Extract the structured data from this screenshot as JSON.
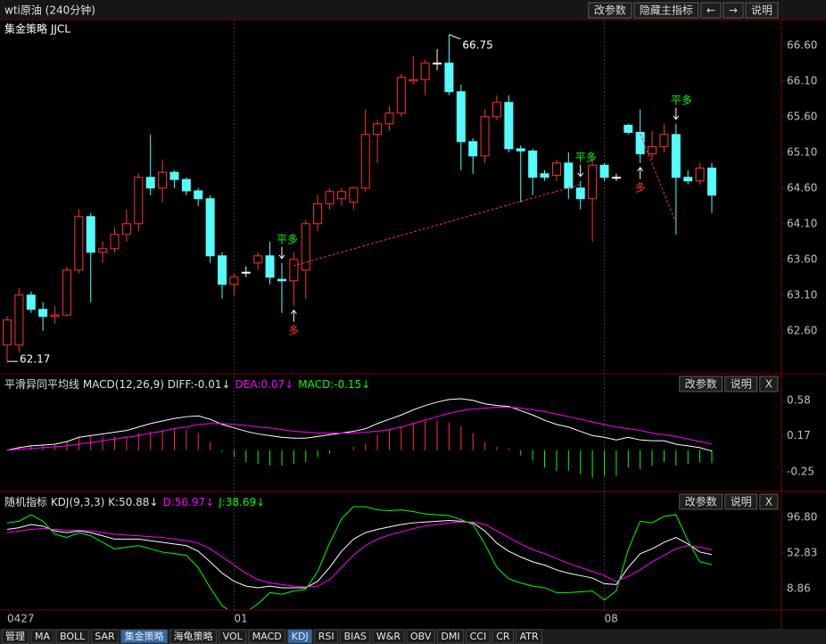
{
  "title": "wti原油 (240分钟)",
  "toolbar": [
    "改参数",
    "隐藏主指标",
    "←",
    "→",
    "说明"
  ],
  "main": {
    "label": "集金策略 JJCL",
    "ylim": [
      62.01,
      66.96
    ],
    "yticks": [
      {
        "value": 66.6,
        "label": "66.60"
      },
      {
        "value": 66.1,
        "label": "66.10"
      },
      {
        "value": 65.6,
        "label": "65.60"
      },
      {
        "value": 65.1,
        "label": "65.10"
      },
      {
        "value": 64.6,
        "label": "64.60"
      },
      {
        "value": 64.1,
        "label": "64.10"
      },
      {
        "value": 63.6,
        "label": "63.60"
      },
      {
        "value": 63.1,
        "label": "63.10"
      },
      {
        "value": 62.6,
        "label": "62.60"
      }
    ],
    "up_color": "#ff3232",
    "down_color": "#54fcfc",
    "doji_color": "#ffffff",
    "candles": [
      {
        "o": 62.4,
        "h": 62.8,
        "l": 62.17,
        "c": 62.75
      },
      {
        "o": 62.4,
        "h": 63.2,
        "l": 62.3,
        "c": 63.1
      },
      {
        "o": 63.1,
        "h": 63.15,
        "l": 62.85,
        "c": 62.9
      },
      {
        "o": 62.9,
        "h": 63.0,
        "l": 62.6,
        "c": 62.8
      },
      {
        "o": 62.8,
        "h": 62.95,
        "l": 62.7,
        "c": 62.82
      },
      {
        "o": 62.82,
        "h": 63.5,
        "l": 62.8,
        "c": 63.45
      },
      {
        "o": 63.45,
        "h": 64.3,
        "l": 63.4,
        "c": 64.2
      },
      {
        "o": 64.2,
        "h": 64.25,
        "l": 63.0,
        "c": 63.7
      },
      {
        "o": 63.7,
        "h": 63.85,
        "l": 63.55,
        "c": 63.75
      },
      {
        "o": 63.75,
        "h": 64.05,
        "l": 63.7,
        "c": 63.95
      },
      {
        "o": 63.95,
        "h": 64.3,
        "l": 63.85,
        "c": 64.1
      },
      {
        "o": 64.1,
        "h": 64.8,
        "l": 64.0,
        "c": 64.75
      },
      {
        "o": 64.75,
        "h": 65.35,
        "l": 64.5,
        "c": 64.6
      },
      {
        "o": 64.6,
        "h": 65.0,
        "l": 64.4,
        "c": 64.82
      },
      {
        "o": 64.82,
        "h": 64.85,
        "l": 64.6,
        "c": 64.72
      },
      {
        "o": 64.72,
        "h": 64.75,
        "l": 64.5,
        "c": 64.56
      },
      {
        "o": 64.56,
        "h": 64.6,
        "l": 64.35,
        "c": 64.45
      },
      {
        "o": 64.45,
        "h": 64.5,
        "l": 63.55,
        "c": 63.65
      },
      {
        "o": 63.65,
        "h": 63.7,
        "l": 63.05,
        "c": 63.25
      },
      {
        "o": 63.25,
        "h": 63.4,
        "l": 63.1,
        "c": 63.35
      },
      {
        "o": 63.42,
        "h": 63.5,
        "l": 63.35,
        "c": 63.42
      },
      {
        "o": 63.55,
        "h": 63.7,
        "l": 63.45,
        "c": 63.65
      },
      {
        "o": 63.65,
        "h": 63.85,
        "l": 63.25,
        "c": 63.35
      },
      {
        "o": 63.32,
        "h": 63.55,
        "l": 62.85,
        "c": 63.3
      },
      {
        "o": 63.3,
        "h": 63.7,
        "l": 62.95,
        "c": 63.6
      },
      {
        "o": 63.45,
        "h": 64.15,
        "l": 63.05,
        "c": 64.1
      },
      {
        "o": 64.1,
        "h": 64.5,
        "l": 64.0,
        "c": 64.38
      },
      {
        "o": 64.38,
        "h": 64.6,
        "l": 64.3,
        "c": 64.55
      },
      {
        "o": 64.45,
        "h": 64.6,
        "l": 64.35,
        "c": 64.55
      },
      {
        "o": 64.4,
        "h": 64.62,
        "l": 64.3,
        "c": 64.6
      },
      {
        "o": 64.6,
        "h": 65.7,
        "l": 64.55,
        "c": 65.35
      },
      {
        "o": 65.35,
        "h": 65.55,
        "l": 64.95,
        "c": 65.5
      },
      {
        "o": 65.5,
        "h": 65.75,
        "l": 65.4,
        "c": 65.65
      },
      {
        "o": 65.65,
        "h": 66.2,
        "l": 65.6,
        "c": 66.15
      },
      {
        "o": 66.1,
        "h": 66.45,
        "l": 66.05,
        "c": 66.12
      },
      {
        "o": 66.12,
        "h": 66.4,
        "l": 65.9,
        "c": 66.35
      },
      {
        "o": 66.35,
        "h": 66.55,
        "l": 66.25,
        "c": 66.35
      },
      {
        "o": 66.35,
        "h": 66.75,
        "l": 65.9,
        "c": 65.95
      },
      {
        "o": 65.95,
        "h": 66.05,
        "l": 64.85,
        "c": 65.25
      },
      {
        "o": 65.25,
        "h": 65.3,
        "l": 64.8,
        "c": 65.05
      },
      {
        "o": 65.05,
        "h": 65.7,
        "l": 64.95,
        "c": 65.6
      },
      {
        "o": 65.6,
        "h": 65.9,
        "l": 65.55,
        "c": 65.8
      },
      {
        "o": 65.8,
        "h": 65.9,
        "l": 65.1,
        "c": 65.15
      },
      {
        "o": 65.15,
        "h": 65.2,
        "l": 64.4,
        "c": 65.12
      },
      {
        "o": 65.12,
        "h": 65.15,
        "l": 64.5,
        "c": 64.75
      },
      {
        "o": 64.8,
        "h": 64.85,
        "l": 64.7,
        "c": 64.75
      },
      {
        "o": 64.78,
        "h": 65.0,
        "l": 64.7,
        "c": 64.95
      },
      {
        "o": 64.95,
        "h": 65.1,
        "l": 64.45,
        "c": 64.6
      },
      {
        "o": 64.6,
        "h": 64.7,
        "l": 64.3,
        "c": 64.45
      },
      {
        "o": 64.45,
        "h": 65.0,
        "l": 63.85,
        "c": 64.92
      },
      {
        "o": 64.92,
        "h": 64.95,
        "l": 64.7,
        "c": 64.75
      },
      {
        "o": 64.75,
        "h": 64.8,
        "l": 64.7,
        "c": 64.75
      },
      {
        "o": 65.48,
        "h": 65.5,
        "l": 65.35,
        "c": 65.38
      },
      {
        "o": 65.38,
        "h": 65.7,
        "l": 64.95,
        "c": 65.08
      },
      {
        "o": 65.08,
        "h": 65.4,
        "l": 65.0,
        "c": 65.18
      },
      {
        "o": 65.18,
        "h": 65.5,
        "l": 65.1,
        "c": 65.35
      },
      {
        "o": 65.35,
        "h": 65.5,
        "l": 63.95,
        "c": 64.75
      },
      {
        "o": 64.75,
        "h": 64.85,
        "l": 64.65,
        "c": 64.7
      },
      {
        "o": 64.7,
        "h": 64.95,
        "l": 64.65,
        "c": 64.88
      },
      {
        "o": 64.88,
        "h": 64.95,
        "l": 64.25,
        "c": 64.5
      }
    ],
    "price_labels": [
      {
        "candle": 37,
        "field": "h"
      },
      {
        "candle": 0,
        "field": "l"
      }
    ],
    "signals": [
      {
        "text": "平多",
        "candle": 23,
        "side": "above",
        "color": "#00ff00"
      },
      {
        "text": "多",
        "candle": 24,
        "side": "below",
        "color": "#ff3232"
      },
      {
        "text": "平多",
        "candle": 48,
        "side": "above",
        "color": "#00ff00"
      },
      {
        "text": "多",
        "candle": 53,
        "side": "below",
        "color": "#ff3232"
      },
      {
        "text": "平多",
        "candle": 56,
        "side": "above",
        "color": "#00ff00"
      }
    ],
    "trend_lines": [
      {
        "from_candle": 24,
        "from_price": 63.51,
        "to_candle": 48,
        "to_price": 64.65,
        "color": "#ff3232"
      },
      {
        "from_candle": 53,
        "from_price": 65.36,
        "to_candle": 56,
        "to_price": 64.11,
        "color": "#ff3232"
      }
    ]
  },
  "macd": {
    "header": [
      {
        "text": "平滑异同平均线 MACD(12,26,9) DIFF:-0.01↓",
        "color": "#e0e0e0"
      },
      {
        "text": "DEA:0.07↓",
        "color": "#ff00ff"
      },
      {
        "text": "MACD:-0.15↓",
        "color": "#00ff00"
      }
    ],
    "buttons": [
      "改参数",
      "说明",
      "X"
    ],
    "ylim": [
      -0.47,
      0.88
    ],
    "yticks": [
      0.58,
      0.17,
      -0.25
    ],
    "series": [
      {
        "color": "#ffffff",
        "values": [
          0.0,
          0.03,
          0.05,
          0.06,
          0.07,
          0.1,
          0.15,
          0.17,
          0.19,
          0.21,
          0.23,
          0.27,
          0.31,
          0.34,
          0.37,
          0.39,
          0.4,
          0.36,
          0.3,
          0.26,
          0.22,
          0.19,
          0.17,
          0.15,
          0.14,
          0.14,
          0.16,
          0.18,
          0.2,
          0.22,
          0.25,
          0.31,
          0.36,
          0.41,
          0.47,
          0.52,
          0.56,
          0.59,
          0.6,
          0.58,
          0.54,
          0.52,
          0.51,
          0.46,
          0.41,
          0.35,
          0.3,
          0.27,
          0.22,
          0.17,
          0.15,
          0.12,
          0.15,
          0.12,
          0.11,
          0.11,
          0.07,
          0.05,
          0.03,
          -0.01
        ]
      },
      {
        "color": "#ff00ff",
        "values": [
          0.0,
          0.01,
          0.02,
          0.03,
          0.04,
          0.05,
          0.07,
          0.09,
          0.11,
          0.13,
          0.15,
          0.17,
          0.2,
          0.22,
          0.25,
          0.27,
          0.3,
          0.31,
          0.31,
          0.3,
          0.29,
          0.27,
          0.26,
          0.24,
          0.22,
          0.21,
          0.2,
          0.2,
          0.2,
          0.2,
          0.21,
          0.22,
          0.24,
          0.27,
          0.31,
          0.35,
          0.39,
          0.43,
          0.46,
          0.48,
          0.49,
          0.5,
          0.5,
          0.49,
          0.47,
          0.45,
          0.42,
          0.39,
          0.36,
          0.33,
          0.3,
          0.27,
          0.25,
          0.23,
          0.2,
          0.18,
          0.16,
          0.13,
          0.1,
          0.07
        ]
      }
    ],
    "bars": {
      "up_color": "#ff3232",
      "down_color": "#00ff00",
      "values": [
        0.0,
        0.04,
        0.06,
        0.06,
        0.06,
        0.1,
        0.16,
        0.16,
        0.16,
        0.16,
        0.16,
        0.2,
        0.22,
        0.24,
        0.24,
        0.24,
        0.2,
        0.1,
        -0.02,
        -0.08,
        -0.14,
        -0.16,
        -0.18,
        -0.18,
        -0.16,
        -0.14,
        -0.08,
        -0.04,
        0.0,
        0.04,
        0.08,
        0.18,
        0.24,
        0.28,
        0.32,
        0.34,
        0.34,
        0.32,
        0.28,
        0.2,
        0.1,
        0.04,
        0.02,
        -0.06,
        -0.12,
        -0.2,
        -0.24,
        -0.24,
        -0.28,
        -0.32,
        -0.3,
        -0.3,
        -0.2,
        -0.22,
        -0.18,
        -0.14,
        -0.18,
        -0.16,
        -0.14,
        -0.15
      ]
    }
  },
  "kdj": {
    "header": [
      {
        "text": "随机指标 KDJ(9,3,3) K:50.88↓",
        "color": "#e0e0e0"
      },
      {
        "text": "D:56.97↓",
        "color": "#ff00ff"
      },
      {
        "text": "J:38.69↓",
        "color": "#00ff00"
      }
    ],
    "buttons": [
      "改参数",
      "说明",
      "X"
    ],
    "ylim": [
      -16.42,
      127.58
    ],
    "yticks": [
      {
        "value": 96.8,
        "label": "96.80"
      },
      52.83,
      8.86
    ],
    "series": [
      {
        "color": "#ffffff",
        "values": [
          82,
          84,
          88,
          86,
          80,
          78,
          80,
          78,
          74,
          70,
          70,
          70,
          68,
          66,
          64,
          62,
          55,
          42,
          28,
          18,
          12,
          10,
          12,
          10,
          10,
          10,
          18,
          35,
          55,
          70,
          78,
          82,
          85,
          88,
          90,
          91,
          92,
          93,
          92,
          90,
          80,
          65,
          55,
          48,
          42,
          38,
          32,
          28,
          25,
          22,
          15,
          14,
          35,
          52,
          58,
          66,
          72,
          64,
          54,
          50.88
        ]
      },
      {
        "color": "#ff00ff",
        "values": [
          78,
          80,
          82,
          83,
          82,
          81,
          81,
          80,
          78,
          76,
          75,
          74,
          73,
          72,
          70,
          68,
          65,
          58,
          48,
          38,
          28,
          20,
          16,
          14,
          12,
          11,
          12,
          20,
          35,
          50,
          62,
          70,
          75,
          79,
          83,
          86,
          88,
          90,
          91,
          91,
          88,
          80,
          72,
          64,
          57,
          52,
          46,
          40,
          35,
          30,
          25,
          18,
          24,
          32,
          42,
          50,
          58,
          62,
          60,
          56.97
        ]
      },
      {
        "color": "#00ff00",
        "values": [
          90,
          92,
          100,
          92,
          76,
          72,
          78,
          74,
          66,
          58,
          60,
          62,
          58,
          54,
          52,
          50,
          35,
          10,
          -12,
          -22,
          -20,
          -10,
          4,
          2,
          6,
          8,
          30,
          65,
          95,
          110,
          110,
          106,
          105,
          106,
          104,
          101,
          100,
          99,
          94,
          88,
          64,
          35,
          21,
          16,
          12,
          10,
          4,
          4,
          5,
          6,
          -5,
          6,
          57,
          92,
          90,
          98,
          100,
          68,
          42,
          38.69
        ]
      }
    ]
  },
  "x_axis": {
    "labels": [
      "0427",
      "01",
      "08"
    ],
    "at_candle": [
      0,
      19,
      50
    ]
  },
  "tabs": [
    "管理",
    "MA",
    "BOLL",
    "SAR",
    "集金策略",
    "海龟策略",
    "VOL",
    "MACD",
    "KDJ",
    "RSI",
    "BIAS",
    "W&R",
    "OBV",
    "DMI",
    "CCI",
    "CR",
    "ATR"
  ],
  "active_tabs": [
    4,
    8
  ]
}
